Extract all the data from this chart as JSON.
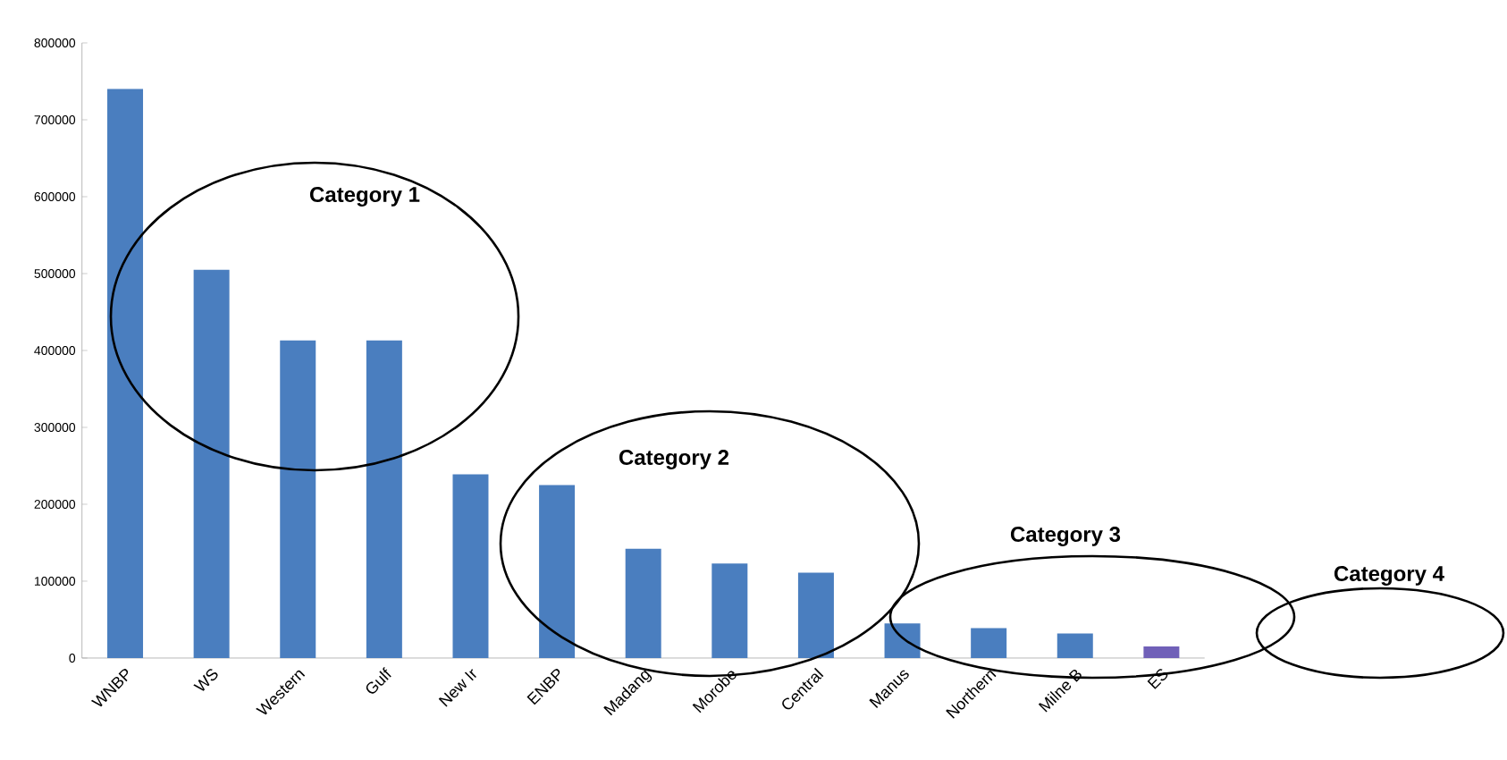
{
  "chart_data": {
    "type": "bar",
    "categories": [
      "WNBP",
      "WS",
      "Western",
      "Gulf",
      "New Ir",
      "ENBP",
      "Madang",
      "Morobe",
      "Central",
      "Manus",
      "Northern",
      "Milne B",
      "ES"
    ],
    "values": [
      740000,
      505000,
      413000,
      413000,
      239000,
      225000,
      142000,
      123000,
      111000,
      45000,
      39000,
      32000,
      15000
    ],
    "colors": [
      "#4a7ebf",
      "#4a7ebf",
      "#4a7ebf",
      "#4a7ebf",
      "#4a7ebf",
      "#4a7ebf",
      "#4a7ebf",
      "#4a7ebf",
      "#4a7ebf",
      "#4a7ebf",
      "#4a7ebf",
      "#4a7ebf",
      "#7060b8"
    ],
    "ylim": [
      0,
      800000
    ],
    "yticks": [
      0,
      100000,
      200000,
      300000,
      400000,
      500000,
      600000,
      700000,
      800000
    ],
    "grid": false,
    "annotations": [
      "Category 1",
      "Category 2",
      "Category 3",
      "Category 4"
    ]
  }
}
